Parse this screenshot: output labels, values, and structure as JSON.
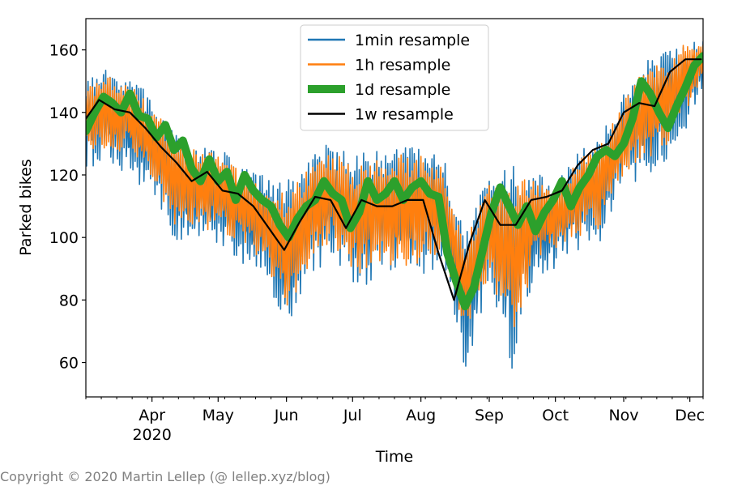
{
  "chart_data": {
    "type": "line",
    "title": "",
    "xlabel": "Time",
    "ylabel": "Parked bikes",
    "xlim": [
      "2020-03-02",
      "2020-12-07"
    ],
    "ylim": [
      49,
      170
    ],
    "y_ticks": [
      60,
      80,
      100,
      120,
      140,
      160
    ],
    "x_ticks": [
      {
        "date": "2020-04-01",
        "label": "Apr",
        "sublabel": "2020"
      },
      {
        "date": "2020-05-01",
        "label": "May",
        "sublabel": ""
      },
      {
        "date": "2020-06-01",
        "label": "Jun",
        "sublabel": ""
      },
      {
        "date": "2020-07-01",
        "label": "Jul",
        "sublabel": ""
      },
      {
        "date": "2020-08-01",
        "label": "Aug",
        "sublabel": ""
      },
      {
        "date": "2020-09-01",
        "label": "Sep",
        "sublabel": ""
      },
      {
        "date": "2020-10-01",
        "label": "Oct",
        "sublabel": ""
      },
      {
        "date": "2020-11-01",
        "label": "Nov",
        "sublabel": ""
      },
      {
        "date": "2020-12-01",
        "label": "Dec",
        "sublabel": ""
      }
    ],
    "grid": false,
    "legend_position": "top-center",
    "series": [
      {
        "name": "1min resample",
        "color": "#1f77b4",
        "style": "band",
        "x": [
          "2020-03-02",
          "2020-03-12",
          "2020-03-22",
          "2020-04-01",
          "2020-04-11",
          "2020-04-21",
          "2020-05-01",
          "2020-05-11",
          "2020-05-21",
          "2020-06-01",
          "2020-06-11",
          "2020-06-21",
          "2020-07-01",
          "2020-07-11",
          "2020-07-21",
          "2020-08-01",
          "2020-08-11",
          "2020-08-21",
          "2020-09-01",
          "2020-09-11",
          "2020-09-21",
          "2020-10-01",
          "2020-10-11",
          "2020-10-21",
          "2020-11-01",
          "2020-11-11",
          "2020-11-21",
          "2020-12-01",
          "2020-12-07"
        ],
        "low": [
          122,
          124,
          120,
          112,
          99,
          98,
          98,
          92,
          88,
          69,
          86,
          93,
          84,
          84,
          86,
          87,
          91,
          55,
          85,
          57,
          87,
          90,
          96,
          98,
          116,
          118,
          125,
          137,
          148
        ],
        "high": [
          150,
          154,
          152,
          145,
          133,
          130,
          129,
          123,
          120,
          118,
          125,
          131,
          126,
          128,
          130,
          128,
          126,
          103,
          120,
          124,
          121,
          118,
          127,
          132,
          146,
          158,
          160,
          164,
          163
        ]
      },
      {
        "name": "1h resample",
        "color": "#ff7f0e",
        "style": "band",
        "x": [
          "2020-03-02",
          "2020-03-12",
          "2020-03-22",
          "2020-04-01",
          "2020-04-11",
          "2020-04-21",
          "2020-05-01",
          "2020-05-11",
          "2020-05-21",
          "2020-06-01",
          "2020-06-11",
          "2020-06-21",
          "2020-07-01",
          "2020-07-11",
          "2020-07-21",
          "2020-08-01",
          "2020-08-11",
          "2020-08-21",
          "2020-09-01",
          "2020-09-11",
          "2020-09-21",
          "2020-10-01",
          "2020-10-11",
          "2020-10-21",
          "2020-11-01",
          "2020-11-11",
          "2020-11-21",
          "2020-12-01",
          "2020-12-07"
        ],
        "low": [
          126,
          129,
          126,
          117,
          104,
          103,
          102,
          97,
          93,
          76,
          91,
          97,
          88,
          90,
          90,
          92,
          95,
          70,
          88,
          64,
          91,
          95,
          100,
          103,
          120,
          124,
          130,
          142,
          150
        ],
        "high": [
          148,
          152,
          150,
          143,
          131,
          128,
          127,
          121,
          118,
          114,
          122,
          128,
          123,
          125,
          127,
          126,
          123,
          98,
          118,
          120,
          119,
          116,
          125,
          130,
          144,
          156,
          158,
          163,
          162
        ]
      },
      {
        "name": "1d resample",
        "color": "#2ca02c",
        "style": "line",
        "x": [
          "2020-03-02",
          "2020-03-06",
          "2020-03-10",
          "2020-03-14",
          "2020-03-18",
          "2020-03-22",
          "2020-03-26",
          "2020-03-30",
          "2020-04-03",
          "2020-04-07",
          "2020-04-11",
          "2020-04-15",
          "2020-04-19",
          "2020-04-23",
          "2020-04-27",
          "2020-05-01",
          "2020-05-05",
          "2020-05-09",
          "2020-05-13",
          "2020-05-17",
          "2020-05-21",
          "2020-05-25",
          "2020-05-29",
          "2020-06-02",
          "2020-06-06",
          "2020-06-10",
          "2020-06-14",
          "2020-06-18",
          "2020-06-22",
          "2020-06-26",
          "2020-06-30",
          "2020-07-04",
          "2020-07-08",
          "2020-07-12",
          "2020-07-16",
          "2020-07-20",
          "2020-07-24",
          "2020-07-28",
          "2020-08-01",
          "2020-08-05",
          "2020-08-09",
          "2020-08-13",
          "2020-08-17",
          "2020-08-21",
          "2020-08-25",
          "2020-08-29",
          "2020-09-02",
          "2020-09-06",
          "2020-09-10",
          "2020-09-14",
          "2020-09-18",
          "2020-09-22",
          "2020-09-26",
          "2020-09-30",
          "2020-10-04",
          "2020-10-08",
          "2020-10-12",
          "2020-10-16",
          "2020-10-20",
          "2020-10-24",
          "2020-10-28",
          "2020-11-01",
          "2020-11-05",
          "2020-11-09",
          "2020-11-13",
          "2020-11-17",
          "2020-11-21",
          "2020-11-25",
          "2020-11-29",
          "2020-12-03",
          "2020-12-07"
        ],
        "y": [
          134,
          140,
          145,
          143,
          140,
          146,
          139,
          138,
          132,
          136,
          128,
          131,
          122,
          118,
          125,
          118,
          121,
          112,
          120,
          115,
          112,
          110,
          104,
          100,
          106,
          110,
          112,
          118,
          114,
          112,
          103,
          108,
          118,
          112,
          114,
          118,
          112,
          116,
          118,
          114,
          113,
          95,
          86,
          78,
          84,
          96,
          108,
          116,
          110,
          104,
          110,
          102,
          108,
          112,
          118,
          110,
          116,
          120,
          126,
          128,
          126,
          130,
          138,
          150,
          146,
          140,
          135,
          142,
          148,
          155,
          158
        ]
      },
      {
        "name": "1w resample",
        "color": "#000000",
        "style": "line",
        "x": [
          "2020-03-01",
          "2020-03-08",
          "2020-03-15",
          "2020-03-22",
          "2020-03-29",
          "2020-04-05",
          "2020-04-12",
          "2020-04-19",
          "2020-04-26",
          "2020-05-03",
          "2020-05-10",
          "2020-05-17",
          "2020-05-24",
          "2020-05-31",
          "2020-06-07",
          "2020-06-14",
          "2020-06-21",
          "2020-06-28",
          "2020-07-05",
          "2020-07-12",
          "2020-07-19",
          "2020-07-26",
          "2020-08-02",
          "2020-08-09",
          "2020-08-16",
          "2020-08-23",
          "2020-08-30",
          "2020-09-06",
          "2020-09-13",
          "2020-09-20",
          "2020-09-27",
          "2020-10-04",
          "2020-10-11",
          "2020-10-18",
          "2020-10-25",
          "2020-11-01",
          "2020-11-08",
          "2020-11-15",
          "2020-11-22",
          "2020-11-29",
          "2020-12-06"
        ],
        "y": [
          137,
          144,
          141,
          140,
          135,
          129,
          124,
          118,
          121,
          115,
          114,
          110,
          103,
          96,
          105,
          113,
          112,
          103,
          112,
          110,
          110,
          112,
          112,
          95,
          80,
          98,
          112,
          104,
          104,
          112,
          113,
          115,
          123,
          128,
          130,
          140,
          143,
          142,
          153,
          157,
          157
        ]
      }
    ],
    "watermark": "Copyright © 2020 Martin Lellep (@ lellep.xyz/blog)"
  }
}
